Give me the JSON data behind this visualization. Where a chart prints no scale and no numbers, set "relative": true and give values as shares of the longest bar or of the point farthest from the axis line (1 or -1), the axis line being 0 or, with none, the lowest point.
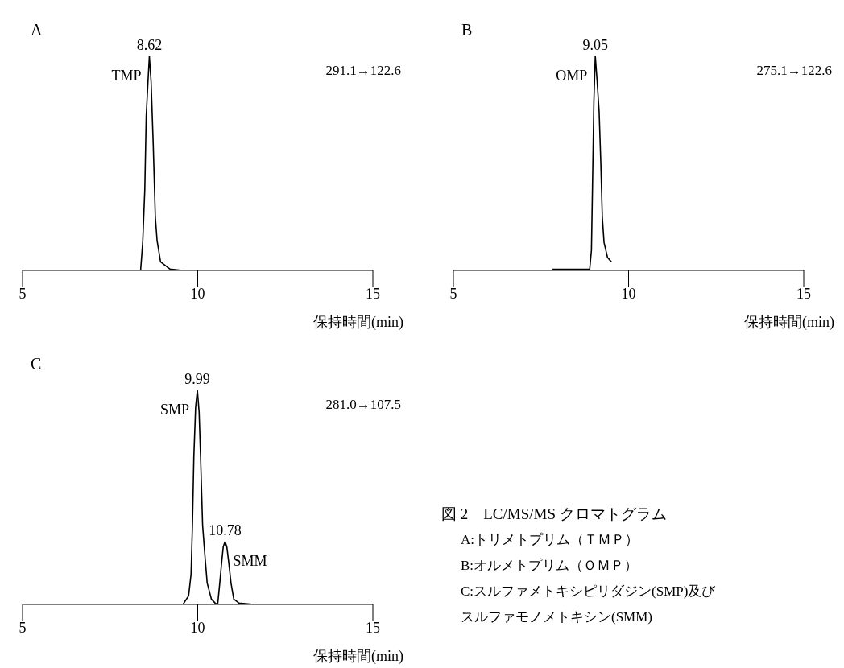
{
  "chart_data": [
    {
      "type": "line",
      "title": "A",
      "xlabel": "保持時間(min)",
      "relative": true,
      "xlim": [
        5,
        15
      ],
      "xticks": [
        5,
        10,
        15
      ],
      "grid": false,
      "legend": false,
      "marker": "none",
      "line_style": "solid",
      "series": [
        {
          "color": "#000000",
          "x": [
            8.37,
            8.43,
            8.49,
            8.53,
            8.58,
            8.62,
            8.67,
            8.73,
            8.79,
            8.84,
            8.94,
            9.21,
            9.56
          ],
          "values": [
            0,
            0.13,
            0.38,
            0.72,
            0.88,
            1,
            0.88,
            0.59,
            0.25,
            0.14,
            0.04,
            0.006,
            0
          ]
        }
      ],
      "annotations": [
        {
          "text": "8.62",
          "x": 8.62,
          "y": 1
        },
        {
          "text": "TMP",
          "x": 8.62,
          "y": 1
        },
        "291.1→122.6"
      ]
    },
    {
      "type": "line",
      "title": "B",
      "xlabel": "保持時間(min)",
      "relative": true,
      "xlim": [
        5,
        15
      ],
      "xticks": [
        5,
        10,
        15
      ],
      "grid": false,
      "legend": false,
      "marker": "none",
      "line_style": "solid",
      "series": [
        {
          "color": "#000000",
          "x": [
            7.82,
            8.89,
            8.94,
            8.97,
            9.01,
            9.05,
            9.1,
            9.16,
            9.21,
            9.25,
            9.3,
            9.4,
            9.51
          ],
          "values": [
            0.005,
            0.005,
            0.095,
            0.39,
            0.79,
            1,
            0.89,
            0.74,
            0.49,
            0.25,
            0.13,
            0.06,
            0.04
          ]
        }
      ],
      "annotations": [
        {
          "text": "9.05",
          "x": 9.05,
          "y": 1
        },
        {
          "text": "OMP",
          "x": 9.05,
          "y": 1
        },
        "275.1→122.6"
      ]
    },
    {
      "type": "line",
      "title": "C",
      "xlabel": "保持時間(min)",
      "relative": true,
      "xlim": [
        5,
        15
      ],
      "xticks": [
        5,
        10,
        15
      ],
      "grid": false,
      "legend": false,
      "marker": "none",
      "line_style": "solid",
      "series": [
        {
          "color": "#000000",
          "x": [
            9.58,
            9.74,
            9.81,
            9.85,
            9.89,
            9.94,
            9.99,
            10.04,
            10.08,
            10.14,
            10.2,
            10.27,
            10.39,
            10.5,
            10.57,
            10.63,
            10.68,
            10.73,
            10.78,
            10.83,
            10.89,
            10.95,
            11.03,
            11.18,
            11.61
          ],
          "values": [
            0,
            0.04,
            0.14,
            0.37,
            0.69,
            0.92,
            1,
            0.9,
            0.7,
            0.37,
            0.24,
            0.1,
            0.025,
            0.006,
            0,
            0.1,
            0.19,
            0.27,
            0.293,
            0.27,
            0.19,
            0.1,
            0.025,
            0.006,
            0
          ]
        }
      ],
      "annotations": [
        {
          "text": "9.99",
          "x": 9.99,
          "y": 1
        },
        {
          "text": "SMP",
          "x": 9.99,
          "y": 1
        },
        {
          "text": "10.78",
          "x": 10.78,
          "y": 0.293
        },
        {
          "text": "SMM",
          "x": 10.78,
          "y": 0.293
        },
        "281.0→107.5"
      ]
    },
    {
      "type": "other",
      "title": "図 2　LC/MS/MS クロマトグラム",
      "annotations": [
        "A:トリメトプリム（ＴＭＰ）",
        "B:オルメトプリム（ＯＭＰ）",
        "C:スルファメトキシピリダジン(SMP)及びスルファモノメトキシン(SMM)"
      ]
    }
  ]
}
